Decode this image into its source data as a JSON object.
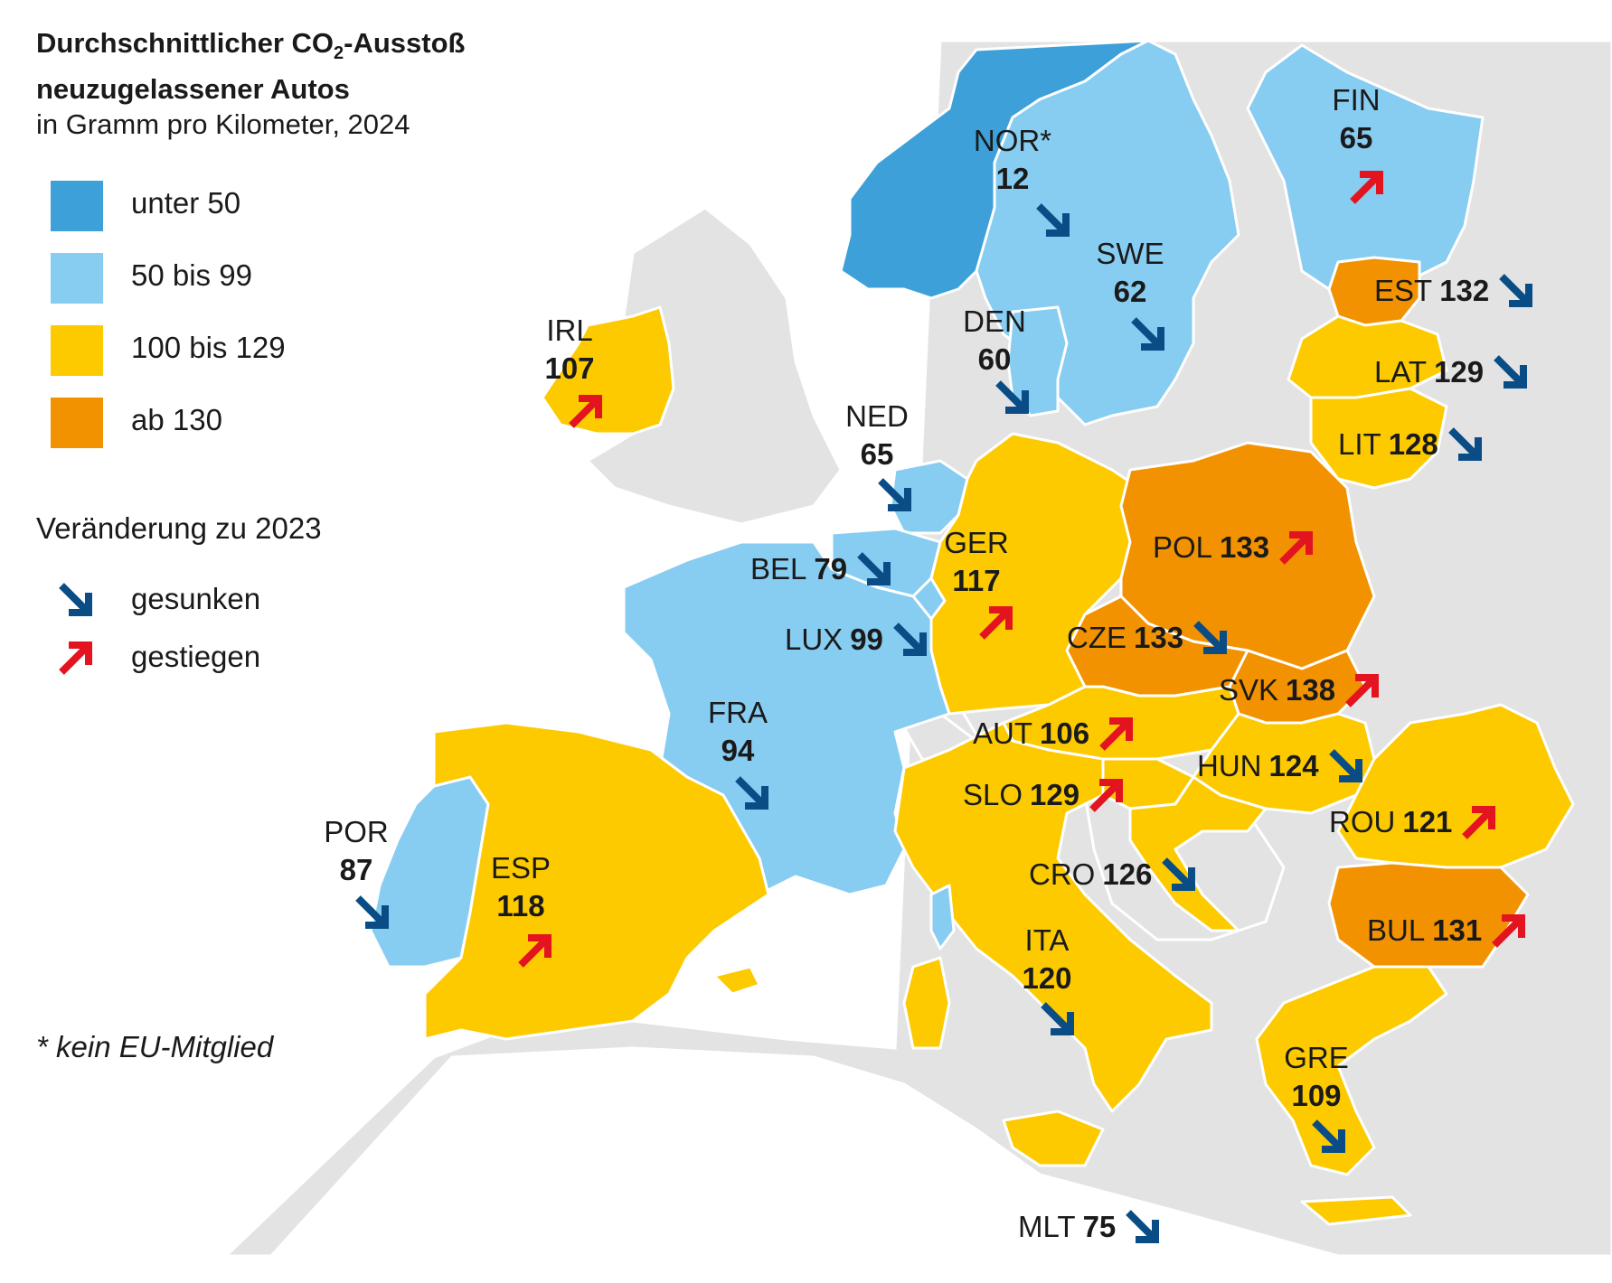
{
  "title_line1_pre": "Durchschnittlicher CO",
  "title_line1_sub": "2",
  "title_line1_post": "-Ausstoß",
  "title_line2": "neuzugelassener Autos",
  "subtitle": "in Gramm pro Kilometer, 2024",
  "legend": [
    {
      "label": "unter 50",
      "color": "#3da0d8"
    },
    {
      "label": "50 bis 99",
      "color": "#87ccf1"
    },
    {
      "label": "100 bis 129",
      "color": "#fdca00"
    },
    {
      "label": "ab 130",
      "color": "#f39200"
    }
  ],
  "change_title": "Veränderung zu 2023",
  "change_legend": [
    {
      "label": "gesunken",
      "icon": "arrow-down-right-icon",
      "color": "#0a4d86"
    },
    {
      "label": "gestiegen",
      "icon": "arrow-up-right-icon",
      "color": "#e3131f"
    }
  ],
  "footnote": "* kein EU-Mitglied",
  "colors": {
    "non_eu": "#e3e3e3",
    "border": "#ffffff"
  },
  "countries": [
    {
      "code": "NOR*",
      "value": "12",
      "change": "down"
    },
    {
      "code": "FIN",
      "value": "65",
      "change": "up"
    },
    {
      "code": "SWE",
      "value": "62",
      "change": "down"
    },
    {
      "code": "EST",
      "value": "132",
      "change": "down"
    },
    {
      "code": "LAT",
      "value": "129",
      "change": "down"
    },
    {
      "code": "LIT",
      "value": "128",
      "change": "down"
    },
    {
      "code": "DEN",
      "value": "60",
      "change": "down"
    },
    {
      "code": "IRL",
      "value": "107",
      "change": "up"
    },
    {
      "code": "NED",
      "value": "65",
      "change": "down"
    },
    {
      "code": "BEL",
      "value": "79",
      "change": "down"
    },
    {
      "code": "LUX",
      "value": "99",
      "change": "down"
    },
    {
      "code": "GER",
      "value": "117",
      "change": "up"
    },
    {
      "code": "POL",
      "value": "133",
      "change": "up"
    },
    {
      "code": "CZE",
      "value": "133",
      "change": "down"
    },
    {
      "code": "SVK",
      "value": "138",
      "change": "up"
    },
    {
      "code": "AUT",
      "value": "106",
      "change": "up"
    },
    {
      "code": "HUN",
      "value": "124",
      "change": "down"
    },
    {
      "code": "SLO",
      "value": "129",
      "change": "up"
    },
    {
      "code": "ROU",
      "value": "121",
      "change": "up"
    },
    {
      "code": "FRA",
      "value": "94",
      "change": "down"
    },
    {
      "code": "POR",
      "value": "87",
      "change": "down"
    },
    {
      "code": "ESP",
      "value": "118",
      "change": "up"
    },
    {
      "code": "CRO",
      "value": "126",
      "change": "down"
    },
    {
      "code": "BUL",
      "value": "131",
      "change": "up"
    },
    {
      "code": "ITA",
      "value": "120",
      "change": "down"
    },
    {
      "code": "GRE",
      "value": "109",
      "change": "down"
    },
    {
      "code": "MLT",
      "value": "75",
      "change": "down"
    }
  ]
}
